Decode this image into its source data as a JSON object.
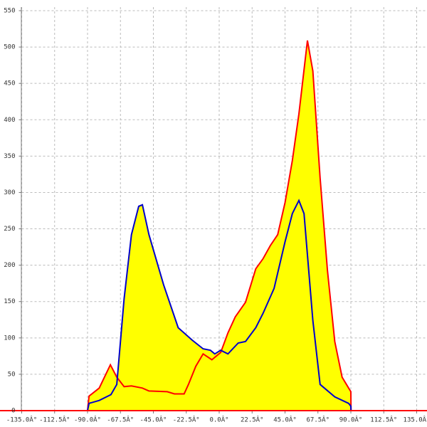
{
  "chart_data": {
    "type": "area",
    "xlim": [
      -135,
      135
    ],
    "ylim": [
      0,
      550
    ],
    "xticks": [
      {
        "value": -135,
        "label": "-135.0Â°"
      },
      {
        "value": -112.5,
        "label": "-112.5Â°"
      },
      {
        "value": -90,
        "label": "-90.0Â°"
      },
      {
        "value": -67.5,
        "label": "-67.5Â°"
      },
      {
        "value": -45,
        "label": "-45.0Â°"
      },
      {
        "value": -22.5,
        "label": "-22.5Â°"
      },
      {
        "value": 0,
        "label": "0.0Â°"
      },
      {
        "value": 22.5,
        "label": "22.5Â°"
      },
      {
        "value": 45,
        "label": "45.0Â°"
      },
      {
        "value": 67.5,
        "label": "67.5Â°"
      },
      {
        "value": 90,
        "label": "90.0Â°"
      },
      {
        "value": 112.5,
        "label": "112.5Â°"
      },
      {
        "value": 135,
        "label": "135.0Â°"
      }
    ],
    "yticks": [
      0,
      50,
      100,
      150,
      200,
      250,
      300,
      350,
      400,
      450,
      500,
      550
    ],
    "grid": true,
    "fill_color": "#ffff00",
    "series": [
      {
        "color": "#ff0000",
        "x": [
          -90,
          -89,
          -82,
          -74.4,
          -70,
          -65,
          -60,
          -52.5,
          -48,
          -35.5,
          -30.6,
          -24,
          -21,
          -16,
          -11,
          -5,
          1,
          6,
          11,
          18,
          25,
          30,
          35,
          40,
          45,
          50,
          54.5,
          60.3,
          64,
          69,
          74,
          79,
          84,
          88.5,
          90,
          90.1
        ],
        "values": [
          0,
          20,
          31,
          63,
          46,
          33,
          34,
          31,
          27,
          26,
          23,
          23,
          36,
          61,
          78,
          70,
          80,
          107,
          129,
          149,
          195,
          209,
          227,
          242,
          286,
          344,
          408,
          509,
          467,
          320,
          193,
          95,
          46,
          31,
          26,
          0
        ]
      },
      {
        "color": "#0000cc",
        "x": [
          -90,
          -89,
          -82,
          -74,
          -70,
          -65,
          -60,
          -55,
          -52.5,
          -48,
          -38,
          -28,
          -18.5,
          -11,
          -6,
          -3,
          1,
          6,
          13,
          18,
          25,
          30,
          37.5,
          45,
          50,
          54.5,
          58,
          64,
          69,
          79,
          88.5,
          90,
          90.1
        ],
        "values": [
          0,
          10,
          14,
          22,
          36,
          154,
          242,
          281,
          283,
          242,
          173,
          114,
          97,
          85,
          83,
          78,
          83,
          78,
          93,
          95,
          114,
          134,
          168,
          232,
          271,
          289,
          271,
          124,
          36,
          19,
          10,
          6,
          0
        ]
      }
    ]
  }
}
